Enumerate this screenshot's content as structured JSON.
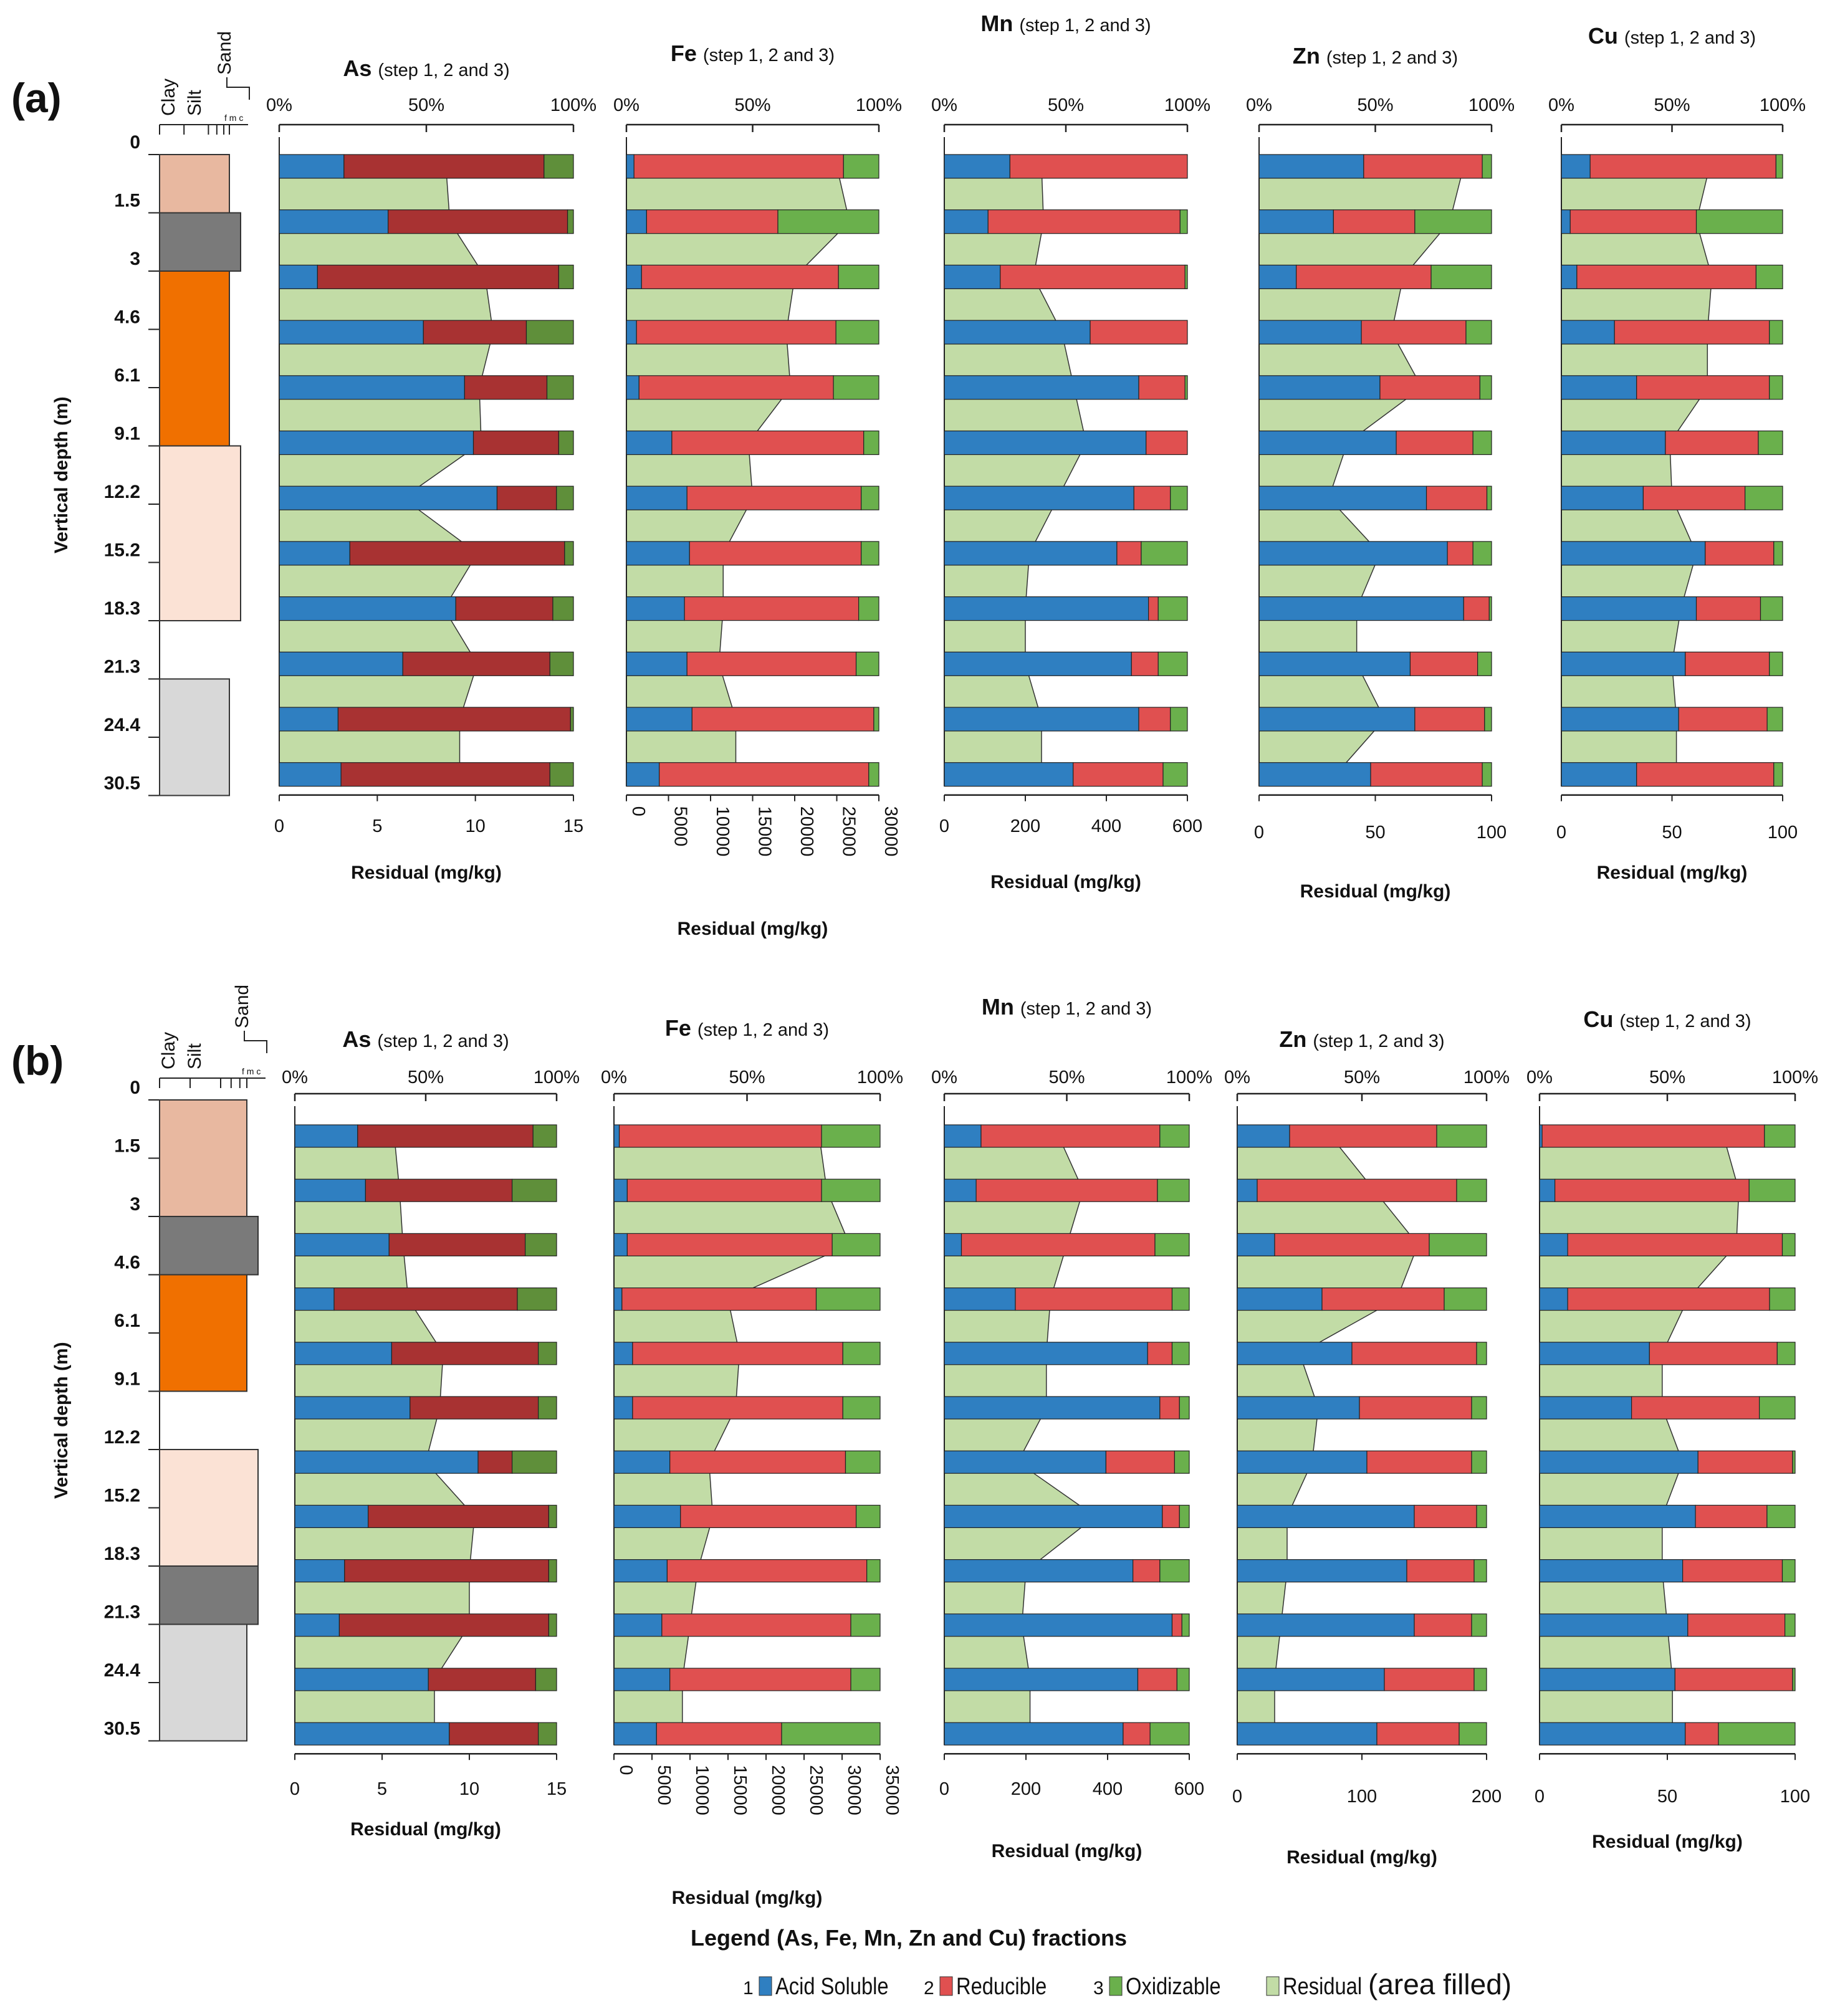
{
  "colors": {
    "acid": "#2f7fc1",
    "reducible": "#e05050",
    "reducible_as": "#a83232",
    "oxidizable": "#6ab04c",
    "oxidizable_as": "#5f8f3a",
    "residual": "#c2dca6",
    "clay": "#e8b8a0",
    "gray_layer": "#7a7a7a",
    "orange": "#f07000",
    "pink": "#fbe2d5",
    "lightgray": "#d8d8d8"
  },
  "common": {
    "step_label": "(step 1, 2 and 3)",
    "percent_ticks": [
      "0%",
      "50%",
      "100%"
    ],
    "depth_axis_title": "Vertical depth (m)",
    "depths": [
      "0",
      "1.5",
      "3",
      "4.6",
      "6.1",
      "9.1",
      "12.2",
      "15.2",
      "18.3",
      "21.3",
      "24.4",
      "30.5"
    ],
    "soil_headers": {
      "clay": "Clay",
      "silt": "Silt",
      "sand": "Sand",
      "fmc": "f m c"
    }
  },
  "legend": {
    "title": "Legend (As, Fe, Mn, Zn and Cu) fractions",
    "items": [
      {
        "num": "1",
        "label": "Acid Soluble"
      },
      {
        "num": "2",
        "label": "Reducible"
      },
      {
        "num": "3",
        "label": "Oxidizable"
      },
      {
        "num": "",
        "label": "Residual"
      }
    ],
    "note": "(area filled)"
  },
  "chart_data": [
    {
      "type": "stacked-bar-with-area",
      "panel": "(a)",
      "depth_m": [
        "1.5",
        "3",
        "4.6",
        "6.1",
        "9.1",
        "12.2",
        "15.2",
        "18.3",
        "21.3",
        "24.4",
        "30.5",
        "30.5"
      ],
      "soil_column": [
        {
          "layer": "clay",
          "from": "0",
          "to": "1.5"
        },
        {
          "layer": "gray",
          "from": "1.5",
          "to": "3"
        },
        {
          "layer": "orange",
          "from": "3",
          "to": "9.1"
        },
        {
          "layer": "pink",
          "from": "9.1",
          "to": "18.3"
        },
        {
          "layer": "lightgray",
          "from": "21.3",
          "to": "30.5"
        }
      ],
      "elements": [
        {
          "element": "As",
          "xlabel": "Residual (mg/kg)",
          "residual_ticks": [
            "0",
            "5",
            "10",
            "15"
          ],
          "residual_range": [
            0,
            15
          ],
          "acid": [
            22,
            37,
            13,
            49,
            63,
            66,
            77,
            24,
            60,
            42,
            20,
            21
          ],
          "reducible": [
            68,
            61,
            82,
            35,
            28,
            29,
            21,
            73,
            33,
            50,
            79,
            71
          ],
          "oxidizable": [
            10,
            2,
            5,
            16,
            9,
            5,
            6,
            3,
            7,
            8,
            1,
            8
          ],
          "residual": [
            8.5,
            8.7,
            10.5,
            10.9,
            10.2,
            10.3,
            6.3,
            10.1,
            8.4,
            10.1,
            9.2,
            9.2
          ]
        },
        {
          "element": "Fe",
          "xlabel": "Residual (mg/kg)",
          "residual_ticks": [
            "0",
            "5000",
            "10000",
            "15000",
            "20000",
            "25000",
            "30000"
          ],
          "residual_range": [
            0,
            30000
          ],
          "vertical_ticks": true,
          "acid": [
            3,
            8,
            6,
            4,
            5,
            18,
            24,
            25,
            23,
            24,
            26,
            13
          ],
          "reducible": [
            83,
            52,
            78,
            79,
            77,
            76,
            69,
            68,
            69,
            67,
            72,
            83
          ],
          "oxidizable": [
            14,
            40,
            16,
            17,
            18,
            6,
            7,
            7,
            8,
            9,
            2,
            4
          ],
          "residual": [
            25000,
            26500,
            20000,
            19000,
            19500,
            14500,
            15000,
            11500,
            11500,
            11000,
            13000,
            13000
          ]
        },
        {
          "element": "Mn",
          "xlabel": "Residual (mg/kg)",
          "residual_ticks": [
            "0",
            "200",
            "400",
            "600"
          ],
          "residual_range": [
            0,
            600
          ],
          "acid": [
            27,
            18,
            23,
            60,
            80,
            83,
            78,
            71,
            84,
            77,
            80,
            53
          ],
          "reducible": [
            73,
            79,
            76,
            40,
            19,
            17,
            15,
            10,
            4,
            11,
            13,
            37
          ],
          "oxidizable": [
            0,
            3,
            1,
            0,
            1,
            0,
            7,
            19,
            12,
            12,
            7,
            10
          ],
          "residual": [
            240,
            245,
            220,
            290,
            320,
            350,
            280,
            210,
            200,
            200,
            240,
            240
          ]
        },
        {
          "element": "Zn",
          "xlabel": "Residual (mg/kg)",
          "residual_ticks": [
            "0",
            "50",
            "100"
          ],
          "residual_range": [
            0,
            100
          ],
          "acid": [
            45,
            32,
            16,
            44,
            52,
            59,
            72,
            81,
            88,
            65,
            67,
            48
          ],
          "reducible": [
            51,
            35,
            58,
            45,
            43,
            33,
            26,
            11,
            11,
            29,
            30,
            48
          ],
          "oxidizable": [
            4,
            33,
            26,
            11,
            5,
            8,
            2,
            8,
            1,
            6,
            3,
            4
          ],
          "residual": [
            88,
            82,
            62,
            57,
            70,
            38,
            30,
            52,
            42,
            42,
            54,
            33
          ]
        },
        {
          "element": "Cu",
          "xlabel": "Residual (mg/kg)",
          "residual_ticks": [
            "0",
            "50",
            "100"
          ],
          "residual_range": [
            0,
            100
          ],
          "acid": [
            13,
            4,
            7,
            24,
            34,
            47,
            37,
            65,
            61,
            56,
            53,
            34
          ],
          "reducible": [
            84,
            57,
            81,
            70,
            60,
            42,
            46,
            31,
            29,
            38,
            40,
            62
          ],
          "oxidizable": [
            3,
            39,
            12,
            6,
            6,
            11,
            17,
            4,
            10,
            6,
            7,
            4
          ],
          "residual": [
            67,
            61,
            68,
            66,
            66,
            49,
            50,
            61,
            54,
            50,
            52,
            52
          ]
        }
      ]
    },
    {
      "type": "stacked-bar-with-area",
      "panel": "(b)",
      "depth_m": [
        "1.5",
        "3",
        "4.6",
        "6.1",
        "9.1",
        "12.2",
        "15.2",
        "18.3",
        "21.3",
        "24.4",
        "30.5",
        "30.5"
      ],
      "soil_column": [
        {
          "layer": "clay",
          "from": "0",
          "to": "3"
        },
        {
          "layer": "gray",
          "from": "3",
          "to": "4.6"
        },
        {
          "layer": "orange",
          "from": "4.6",
          "to": "9.1"
        },
        {
          "layer": "pink",
          "from": "12.2",
          "to": "18.3"
        },
        {
          "layer": "gray",
          "from": "18.3",
          "to": "21.3"
        },
        {
          "layer": "lightgray",
          "from": "21.3",
          "to": "30.5"
        }
      ],
      "elements": [
        {
          "element": "As",
          "xlabel": "Residual (mg/kg)",
          "residual_ticks": [
            "0",
            "5",
            "10",
            "15"
          ],
          "residual_range": [
            0,
            15
          ],
          "acid": [
            24,
            27,
            36,
            15,
            37,
            44,
            70,
            28,
            19,
            17,
            51,
            59
          ],
          "reducible": [
            67,
            56,
            52,
            70,
            56,
            49,
            13,
            69,
            78,
            80,
            41,
            34
          ],
          "oxidizable": [
            9,
            17,
            12,
            15,
            7,
            7,
            17,
            3,
            3,
            3,
            8,
            7
          ],
          "residual": [
            5.7,
            6.0,
            6.2,
            6.5,
            8.5,
            8.3,
            7.5,
            10.3,
            10.0,
            10.0,
            8.0,
            8.0
          ]
        },
        {
          "element": "Fe",
          "xlabel": "Residual (mg/kg)",
          "residual_ticks": [
            "0",
            "5000",
            "10000",
            "15000",
            "20000",
            "25000",
            "30000",
            "35000"
          ],
          "residual_range": [
            0,
            35000
          ],
          "vertical_ticks": true,
          "acid": [
            2,
            5,
            5,
            3,
            7,
            7,
            21,
            25,
            20,
            18,
            21,
            16
          ],
          "reducible": [
            76,
            73,
            77,
            73,
            79,
            79,
            66,
            66,
            75,
            71,
            68,
            47
          ],
          "oxidizable": [
            22,
            22,
            18,
            24,
            14,
            14,
            13,
            9,
            5,
            11,
            11,
            37
          ],
          "residual": [
            27000,
            28000,
            31000,
            15000,
            16500,
            16000,
            12500,
            13000,
            11000,
            10000,
            9000,
            9000
          ]
        },
        {
          "element": "Mn",
          "xlabel": "Residual (mg/kg)",
          "residual_ticks": [
            "0",
            "200",
            "400",
            "600"
          ],
          "residual_range": [
            0,
            600
          ],
          "acid": [
            15,
            13,
            7,
            29,
            83,
            88,
            66,
            89,
            77,
            93,
            79,
            73
          ],
          "reducible": [
            73,
            74,
            79,
            64,
            10,
            8,
            28,
            7,
            11,
            4,
            16,
            11
          ],
          "oxidizable": [
            12,
            13,
            14,
            7,
            7,
            4,
            6,
            4,
            12,
            3,
            5,
            16
          ],
          "residual": [
            280,
            340,
            300,
            260,
            250,
            250,
            180,
            370,
            200,
            190,
            210,
            210
          ]
        },
        {
          "element": "Zn",
          "xlabel": "Residual (mg/kg)",
          "residual_ticks": [
            "0",
            "100",
            "200"
          ],
          "residual_range": [
            0,
            200
          ],
          "acid": [
            21,
            8,
            15,
            34,
            46,
            49,
            52,
            71,
            68,
            71,
            59,
            56
          ],
          "reducible": [
            59,
            80,
            62,
            49,
            50,
            45,
            42,
            25,
            27,
            23,
            36,
            33
          ],
          "oxidizable": [
            20,
            12,
            23,
            17,
            4,
            6,
            6,
            4,
            5,
            6,
            5,
            11
          ],
          "residual": [
            75,
            110,
            145,
            128,
            50,
            65,
            60,
            40,
            40,
            35,
            30,
            30
          ]
        },
        {
          "element": "Cu",
          "xlabel": "Residual (mg/kg)",
          "residual_ticks": [
            "0",
            "50",
            "100"
          ],
          "residual_range": [
            0,
            100
          ],
          "acid": [
            1,
            6,
            11,
            11,
            43,
            36,
            62,
            61,
            56,
            58,
            53,
            57
          ],
          "reducible": [
            87,
            76,
            84,
            79,
            50,
            50,
            37,
            28,
            39,
            38,
            46,
            13
          ],
          "oxidizable": [
            12,
            18,
            5,
            10,
            7,
            14,
            1,
            11,
            5,
            4,
            1,
            30
          ],
          "residual": [
            72,
            78,
            77,
            58,
            48,
            48,
            56,
            48,
            48,
            50,
            52,
            52
          ]
        }
      ]
    }
  ]
}
